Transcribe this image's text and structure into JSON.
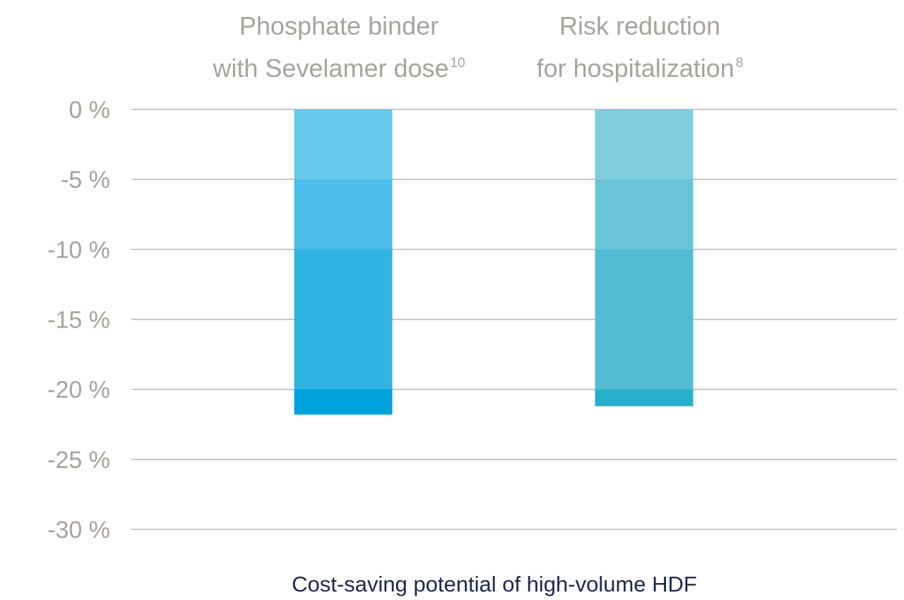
{
  "chart_data": {
    "type": "bar",
    "categories": [
      {
        "line1": "Phosphate binder",
        "line2": "with Sevelamer dose",
        "sup": "10"
      },
      {
        "line1": "Risk reduction",
        "line2": "for hospitalization",
        "sup": "8"
      }
    ],
    "values": [
      -21.8,
      -21.2
    ],
    "ylim": [
      -30,
      0
    ],
    "yticks": [
      0,
      -5,
      -10,
      -15,
      -20,
      -25,
      -30
    ],
    "ytick_labels": [
      "0 %",
      "-5 %",
      "-10 %",
      "-15 %",
      "-20 %",
      "-25 %",
      "-30 %"
    ],
    "xlabel": "Cost-saving potential of high-volume HDF",
    "grid": true,
    "colors": {
      "bar_1_bands": [
        "#66c9ea",
        "#4dbeea",
        "#2fb3e3",
        "#00a3dc"
      ],
      "bar_2_bands": [
        "#80cde0",
        "#6bc5d9",
        "#53bcd5",
        "#25afcd"
      ],
      "tick_text": "#a8a39d",
      "xlabel_text": "#1c2a4a",
      "grid": "#b9b6b2"
    }
  }
}
